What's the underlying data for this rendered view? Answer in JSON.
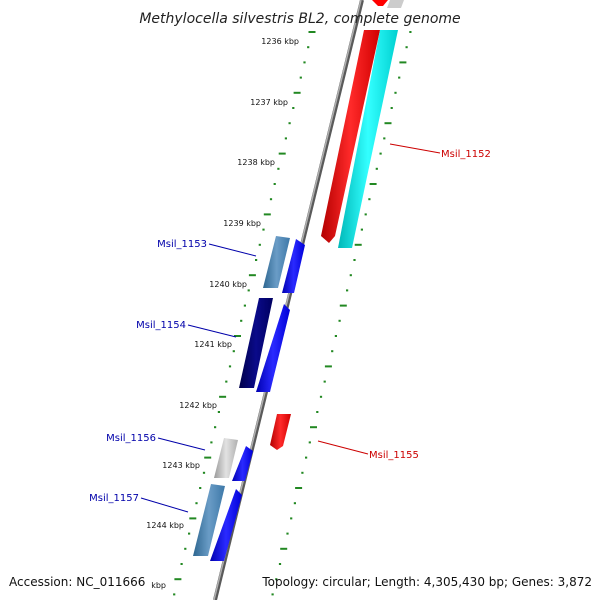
{
  "map": {
    "title": "Methylocella silvestris BL2, complete genome",
    "footer": {
      "accession": "Accession: NC_011666",
      "topology": "Topology: circular; Length: 4,305,430 bp; Genes: 3,872"
    },
    "tick_labels": [
      "1236 kbp",
      "1237 kbp",
      "1238 kbp",
      "1239 kbp",
      "1240 kbp",
      "1241 kbp",
      "1242 kbp",
      "1243 kbp",
      "1244 kbp",
      "kbp"
    ],
    "genes": [
      {
        "id": "Msil_1152",
        "strand": "forward"
      },
      {
        "id": "Msil_1153",
        "strand": "reverse"
      },
      {
        "id": "Msil_1154",
        "strand": "reverse"
      },
      {
        "id": "Msil_1155",
        "strand": "forward"
      },
      {
        "id": "Msil_1156",
        "strand": "reverse"
      },
      {
        "id": "Msil_1157",
        "strand": "reverse"
      }
    ],
    "colors": {
      "forward_label": "#cc0000",
      "reverse_label": "#0000aa",
      "backbone": "#888888",
      "ticks": "#228822",
      "forward_cds": "#ff0000",
      "forward_rna": "#00e6e6",
      "reverse_cds": "#0000ff",
      "reverse_feature_dark": "#000080",
      "reverse_feature_steel": "#4682b4",
      "reverse_feature_gray": "#bbbbbb"
    }
  }
}
